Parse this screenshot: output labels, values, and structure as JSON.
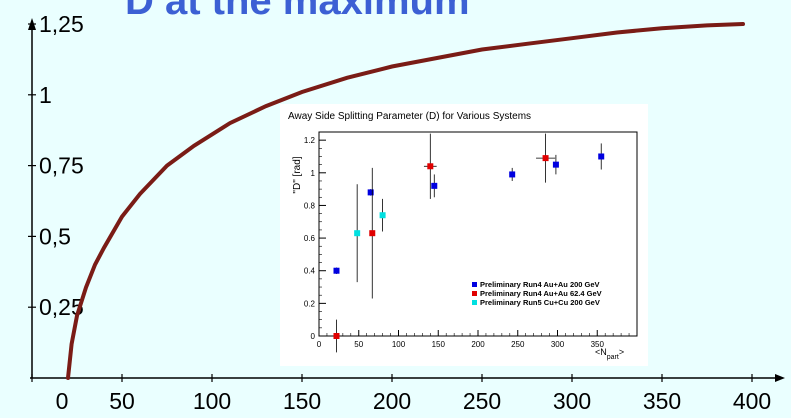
{
  "slide": {
    "title_fragment": "D at the maximum",
    "background": "#eaffff",
    "curve_color": "#7a1c16",
    "axis_color": "#000000"
  },
  "chart_data": [
    {
      "type": "line",
      "title": "",
      "xlabel": "",
      "ylabel": "",
      "xlim": [
        0,
        400
      ],
      "ylim": [
        0,
        1.25
      ],
      "x_ticks": [
        0,
        50,
        100,
        150,
        200,
        250,
        300,
        350,
        400
      ],
      "x_tick_labels": [
        "0",
        "50",
        "100",
        "150",
        "200",
        "250",
        "300",
        "350",
        "400"
      ],
      "y_ticks": [
        0.25,
        0.5,
        0.75,
        1,
        1.25
      ],
      "y_tick_labels": [
        "0,25",
        "0,5",
        "0,75",
        "1",
        "1,25"
      ],
      "series": [
        {
          "color": "#7a1c16",
          "x": [
            20,
            22,
            25,
            30,
            35,
            40,
            50,
            60,
            75,
            90,
            110,
            130,
            150,
            175,
            200,
            225,
            250,
            275,
            300,
            325,
            350,
            375,
            395
          ],
          "y": [
            0.0,
            0.12,
            0.22,
            0.32,
            0.4,
            0.46,
            0.57,
            0.65,
            0.75,
            0.82,
            0.9,
            0.96,
            1.01,
            1.06,
            1.1,
            1.13,
            1.16,
            1.18,
            1.2,
            1.22,
            1.235,
            1.245,
            1.25
          ]
        }
      ],
      "grid": false
    },
    {
      "type": "scatter",
      "title": "Away Side Splitting Parameter (D) for Various Systems",
      "xlabel": "<N",
      "xlabel_sub": "part",
      "xlabel_close": ">",
      "ylabel": "\"D\" [rad]",
      "xlim": [
        0,
        400
      ],
      "ylim": [
        0,
        1.25
      ],
      "x_ticks": [
        0,
        50,
        100,
        150,
        200,
        250,
        300,
        350
      ],
      "y_ticks": [
        0,
        0.2,
        0.4,
        0.6,
        0.8,
        1,
        1.2
      ],
      "y_tick_labels": [
        "0",
        "0.2",
        "0.4",
        "0.6",
        "0.8",
        "1",
        "1.2"
      ],
      "legend_position": "bottom-right",
      "grid": false,
      "series": [
        {
          "name": "Preliminary Run4 Au+Au 200 GeV",
          "color": "#0000e0",
          "x": [
            22,
            65,
            145,
            243,
            298,
            355
          ],
          "y": [
            0.4,
            0.88,
            0.92,
            0.99,
            1.05,
            1.1
          ],
          "yerr": [
            0.02,
            0.02,
            0.07,
            0.04,
            0.06,
            0.08
          ]
        },
        {
          "name": "Preliminary Run4 Au+Au 62.4 GeV",
          "color": "#e00000",
          "x": [
            22,
            67,
            140,
            285
          ],
          "y": [
            0.0,
            0.63,
            1.04,
            1.09
          ],
          "yerr": [
            0.1,
            0.4,
            0.2,
            0.15
          ],
          "xerr": [
            0,
            0,
            8,
            12
          ]
        },
        {
          "name": "Preliminary Run5 Cu+Cu 200 GeV",
          "color": "#00e0e0",
          "x": [
            48,
            80
          ],
          "y": [
            0.63,
            0.74
          ],
          "yerr": [
            0.3,
            0.1
          ]
        }
      ]
    }
  ]
}
